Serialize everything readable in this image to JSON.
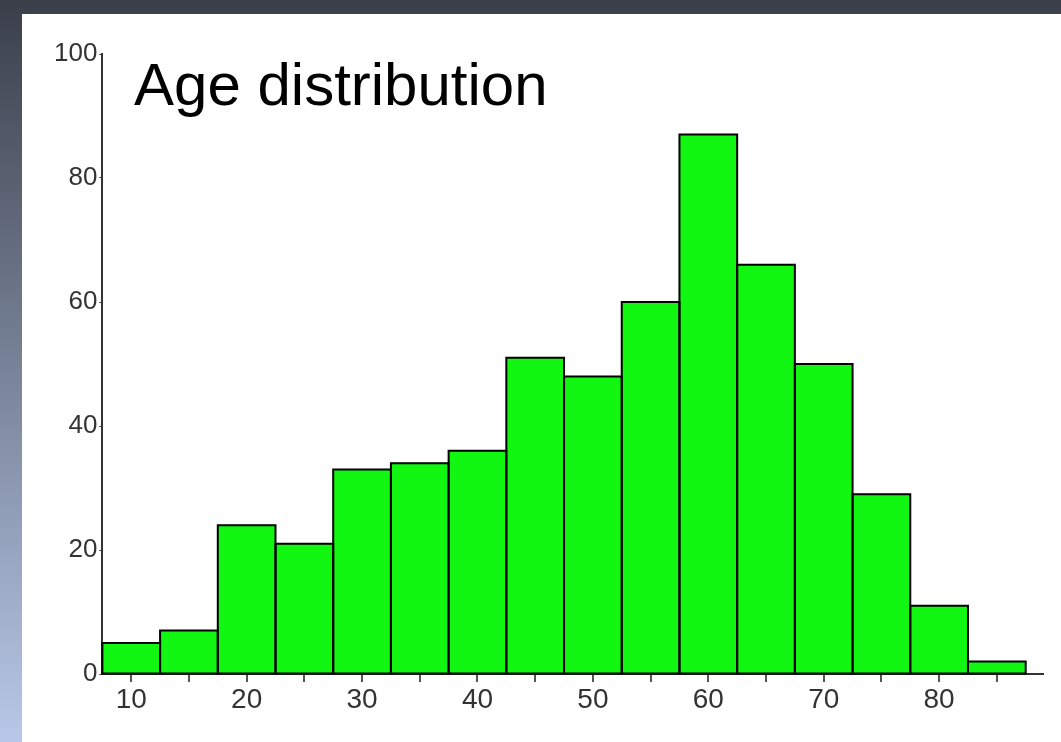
{
  "chart_data": {
    "type": "histogram",
    "title": "Age distribution",
    "bins": [
      7.5,
      12.5,
      17.5,
      22.5,
      27.5,
      32.5,
      37.5,
      42.5,
      47.5,
      52.5,
      57.5,
      62.5,
      67.5,
      72.5,
      77.5,
      82.5,
      87.5
    ],
    "values": [
      5,
      7,
      24,
      21,
      33,
      34,
      36,
      51,
      48,
      60,
      87,
      66,
      50,
      29,
      11,
      2
    ],
    "color": "#11f711",
    "xlim": [
      7.5,
      89
    ],
    "xticks": [
      10,
      {
        "value": 15,
        "label": null
      },
      20,
      {
        "value": 25,
        "label": null
      },
      30,
      {
        "value": 35,
        "label": null
      },
      40,
      {
        "value": 45,
        "label": null
      },
      50,
      {
        "value": 55,
        "label": null
      },
      60,
      {
        "value": 65,
        "label": null
      },
      70,
      {
        "value": 75,
        "label": null
      },
      80,
      {
        "value": 85,
        "label": null
      }
    ],
    "ylim": [
      0,
      100
    ],
    "yticks": [
      0,
      20,
      40,
      60,
      80,
      100
    ],
    "grid": false,
    "legend": false
  }
}
